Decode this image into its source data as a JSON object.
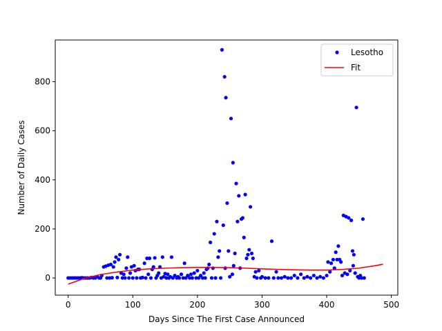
{
  "chart_data": {
    "type": "scatter",
    "xlabel": "Days Since The First Case Announced",
    "ylabel": "Number of Daily Cases",
    "xlim": [
      -20,
      510
    ],
    "ylim": [
      -70,
      970
    ],
    "xticks": [
      0,
      100,
      200,
      300,
      400,
      500
    ],
    "yticks": [
      0,
      200,
      400,
      600,
      800
    ],
    "grid": false,
    "legend_position": "top-right",
    "series": [
      {
        "name": "Lesotho",
        "kind": "scatter",
        "color": "#0000ff",
        "points": [
          [
            0,
            0
          ],
          [
            3,
            0
          ],
          [
            6,
            0
          ],
          [
            9,
            0
          ],
          [
            12,
            0
          ],
          [
            15,
            0
          ],
          [
            18,
            0
          ],
          [
            21,
            1
          ],
          [
            24,
            0
          ],
          [
            27,
            0
          ],
          [
            30,
            0
          ],
          [
            33,
            0
          ],
          [
            36,
            2
          ],
          [
            39,
            0
          ],
          [
            42,
            0
          ],
          [
            45,
            5
          ],
          [
            48,
            0
          ],
          [
            50,
            0
          ],
          [
            52,
            10
          ],
          [
            55,
            45
          ],
          [
            58,
            48
          ],
          [
            60,
            0
          ],
          [
            62,
            52
          ],
          [
            64,
            0
          ],
          [
            66,
            55
          ],
          [
            68,
            1
          ],
          [
            70,
            45
          ],
          [
            72,
            65
          ],
          [
            74,
            85
          ],
          [
            76,
            2
          ],
          [
            78,
            75
          ],
          [
            80,
            95
          ],
          [
            82,
            20
          ],
          [
            84,
            0
          ],
          [
            86,
            15
          ],
          [
            88,
            0
          ],
          [
            90,
            40
          ],
          [
            92,
            85
          ],
          [
            94,
            0
          ],
          [
            96,
            20
          ],
          [
            98,
            45
          ],
          [
            100,
            0
          ],
          [
            102,
            50
          ],
          [
            104,
            30
          ],
          [
            106,
            0
          ],
          [
            108,
            35
          ],
          [
            110,
            35
          ],
          [
            112,
            0
          ],
          [
            115,
            2
          ],
          [
            118,
            60
          ],
          [
            120,
            0
          ],
          [
            122,
            80
          ],
          [
            124,
            15
          ],
          [
            126,
            80
          ],
          [
            128,
            0
          ],
          [
            130,
            35
          ],
          [
            132,
            45
          ],
          [
            134,
            82
          ],
          [
            136,
            0
          ],
          [
            138,
            10
          ],
          [
            140,
            20
          ],
          [
            142,
            45
          ],
          [
            144,
            0
          ],
          [
            146,
            85
          ],
          [
            148,
            5
          ],
          [
            150,
            18
          ],
          [
            152,
            0
          ],
          [
            154,
            15
          ],
          [
            156,
            0
          ],
          [
            158,
            5
          ],
          [
            160,
            85
          ],
          [
            162,
            0
          ],
          [
            165,
            10
          ],
          [
            168,
            0
          ],
          [
            170,
            5
          ],
          [
            172,
            0
          ],
          [
            175,
            15
          ],
          [
            178,
            0
          ],
          [
            180,
            60
          ],
          [
            182,
            0
          ],
          [
            185,
            10
          ],
          [
            188,
            0
          ],
          [
            190,
            15
          ],
          [
            192,
            0
          ],
          [
            195,
            20
          ],
          [
            198,
            0
          ],
          [
            200,
            30
          ],
          [
            202,
            0
          ],
          [
            205,
            10
          ],
          [
            208,
            0
          ],
          [
            210,
            20
          ],
          [
            212,
            0
          ],
          [
            214,
            35
          ],
          [
            216,
            40
          ],
          [
            218,
            55
          ],
          [
            220,
            145
          ],
          [
            222,
            0
          ],
          [
            224,
            40
          ],
          [
            226,
            180
          ],
          [
            228,
            0
          ],
          [
            230,
            230
          ],
          [
            232,
            85
          ],
          [
            234,
            110
          ],
          [
            236,
            0
          ],
          [
            238,
            930
          ],
          [
            240,
            215
          ],
          [
            242,
            820
          ],
          [
            243,
            40
          ],
          [
            244,
            735
          ],
          [
            246,
            305
          ],
          [
            248,
            110
          ],
          [
            250,
            5
          ],
          [
            252,
            650
          ],
          [
            254,
            15
          ],
          [
            255,
            470
          ],
          [
            256,
            50
          ],
          [
            258,
            100
          ],
          [
            260,
            385
          ],
          [
            262,
            230
          ],
          [
            264,
            335
          ],
          [
            266,
            40
          ],
          [
            268,
            240
          ],
          [
            270,
            245
          ],
          [
            272,
            165
          ],
          [
            274,
            340
          ],
          [
            276,
            80
          ],
          [
            278,
            95
          ],
          [
            280,
            115
          ],
          [
            282,
            290
          ],
          [
            284,
            100
          ],
          [
            286,
            80
          ],
          [
            288,
            5
          ],
          [
            290,
            25
          ],
          [
            292,
            0
          ],
          [
            295,
            30
          ],
          [
            298,
            0
          ],
          [
            300,
            5
          ],
          [
            305,
            0
          ],
          [
            310,
            0
          ],
          [
            315,
            150
          ],
          [
            318,
            0
          ],
          [
            322,
            25
          ],
          [
            325,
            0
          ],
          [
            330,
            0
          ],
          [
            335,
            5
          ],
          [
            340,
            0
          ],
          [
            345,
            0
          ],
          [
            350,
            10
          ],
          [
            355,
            0
          ],
          [
            360,
            15
          ],
          [
            365,
            0
          ],
          [
            370,
            5
          ],
          [
            375,
            0
          ],
          [
            380,
            10
          ],
          [
            385,
            0
          ],
          [
            390,
            5
          ],
          [
            395,
            0
          ],
          [
            400,
            10
          ],
          [
            402,
            65
          ],
          [
            405,
            25
          ],
          [
            407,
            60
          ],
          [
            410,
            75
          ],
          [
            412,
            40
          ],
          [
            414,
            105
          ],
          [
            416,
            75
          ],
          [
            418,
            130
          ],
          [
            420,
            75
          ],
          [
            422,
            65
          ],
          [
            424,
            10
          ],
          [
            426,
            255
          ],
          [
            428,
            20
          ],
          [
            430,
            250
          ],
          [
            432,
            15
          ],
          [
            434,
            245
          ],
          [
            436,
            30
          ],
          [
            438,
            235
          ],
          [
            440,
            110
          ],
          [
            441,
            50
          ],
          [
            442,
            95
          ],
          [
            444,
            20
          ],
          [
            446,
            695
          ],
          [
            448,
            5
          ],
          [
            450,
            0
          ],
          [
            452,
            10
          ],
          [
            454,
            0
          ],
          [
            456,
            240
          ],
          [
            458,
            0
          ]
        ]
      },
      {
        "name": "Fit",
        "kind": "line",
        "color": "#ff0000",
        "points": [
          [
            0,
            -25
          ],
          [
            25,
            -2
          ],
          [
            50,
            14
          ],
          [
            75,
            24
          ],
          [
            100,
            32
          ],
          [
            125,
            37
          ],
          [
            150,
            40
          ],
          [
            175,
            42
          ],
          [
            200,
            43
          ],
          [
            225,
            43
          ],
          [
            250,
            42
          ],
          [
            275,
            40
          ],
          [
            300,
            37
          ],
          [
            325,
            35
          ],
          [
            350,
            33
          ],
          [
            375,
            32
          ],
          [
            400,
            32
          ],
          [
            425,
            35
          ],
          [
            450,
            40
          ],
          [
            475,
            50
          ],
          [
            487,
            56
          ]
        ]
      }
    ]
  }
}
